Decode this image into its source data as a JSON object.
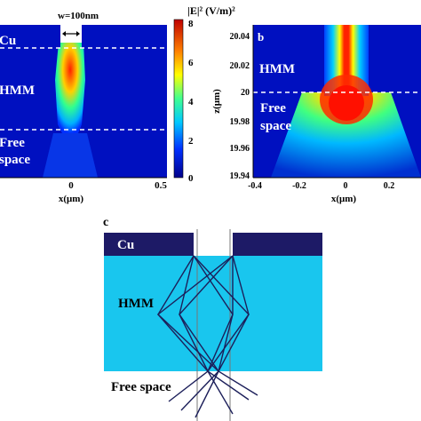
{
  "panel_a": {
    "width_label": "w=100nm",
    "region_top": "Cu",
    "region_mid": "HMM",
    "region_bottom_1": "Free",
    "region_bottom_2": "space",
    "x_ticks": [
      "0",
      "0.5"
    ],
    "x_axis_label": "x(μm)",
    "colorbar_title": "|E|² (V/m)²",
    "colorbar_ticks": [
      "8",
      "6",
      "4",
      "2",
      "0"
    ]
  },
  "panel_b": {
    "panel_label": "b",
    "region_top": "HMM",
    "region_bottom_1": "Free",
    "region_bottom_2": "space",
    "y_axis_label": "z(μm)",
    "y_ticks": [
      "20.04",
      "20.02",
      "20",
      "19.98",
      "19.96",
      "19.94"
    ],
    "x_ticks": [
      "-0.4",
      "-0.2",
      "0",
      "0.2"
    ],
    "x_axis_label": "x(μm)"
  },
  "panel_c": {
    "panel_label": "c",
    "cu_label": "Cu",
    "hmm_label": "HMM",
    "free_space_label": "Free space"
  },
  "colors": {
    "cu": "#1d1a66",
    "hmm": "#19c6ee",
    "field_bg": "#0010c0",
    "dashed": "#ffffff"
  }
}
